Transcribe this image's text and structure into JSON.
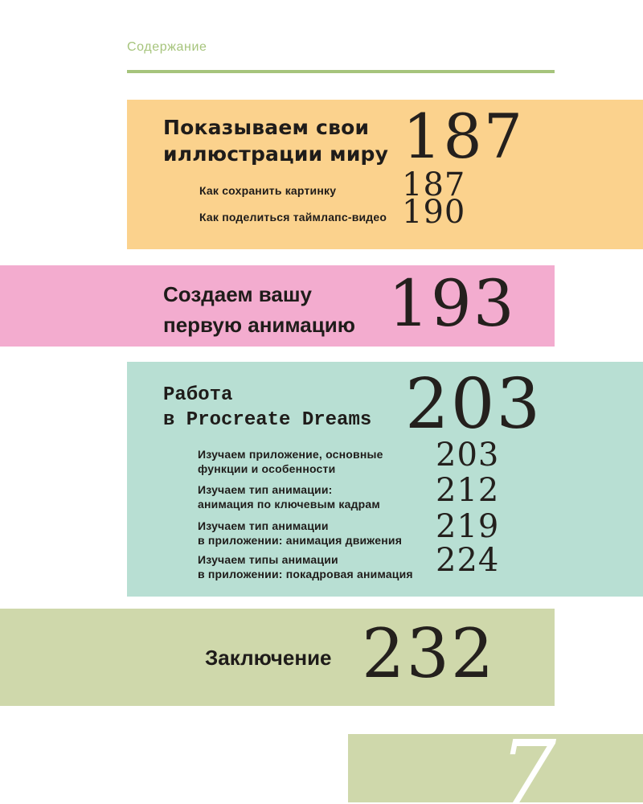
{
  "header": {
    "label": "Содержание"
  },
  "folio": {
    "page_number": "7"
  },
  "colors": {
    "accent_green": "#a6c47c",
    "block_orange": "#fbd28d",
    "block_pink": "#f3accf",
    "block_mint": "#b8dfd3",
    "block_sage": "#cfd8ab",
    "ink": "#1f1c1a",
    "folio_white": "#ffffff"
  },
  "sections": [
    {
      "title_lines": [
        "Показываем свои",
        "иллюстрации миру"
      ],
      "page": "187",
      "items": [
        {
          "label_lines": [
            "Как сохранить картинку"
          ],
          "page": "187"
        },
        {
          "label_lines": [
            "Как поделиться таймлапс-видео"
          ],
          "page": "190"
        }
      ]
    },
    {
      "title_lines": [
        "Создаем вашу",
        "первую анимацию"
      ],
      "page": "193",
      "items": []
    },
    {
      "title_lines": [
        "Работа",
        "в Procreate Dreams"
      ],
      "page": "203",
      "items": [
        {
          "label_lines": [
            "Изучаем приложение, основные",
            "функции и особенности"
          ],
          "page": "203"
        },
        {
          "label_lines": [
            "Изучаем тип анимации:",
            "анимация по ключевым кадрам"
          ],
          "page": "212"
        },
        {
          "label_lines": [
            "Изучаем тип анимации",
            "в приложении: анимация движения"
          ],
          "page": "219"
        },
        {
          "label_lines": [
            "Изучаем типы анимации",
            "в приложении: покадровая анимация"
          ],
          "page": "224"
        }
      ]
    },
    {
      "title_lines": [
        "Заключение"
      ],
      "page": "232",
      "items": []
    }
  ]
}
